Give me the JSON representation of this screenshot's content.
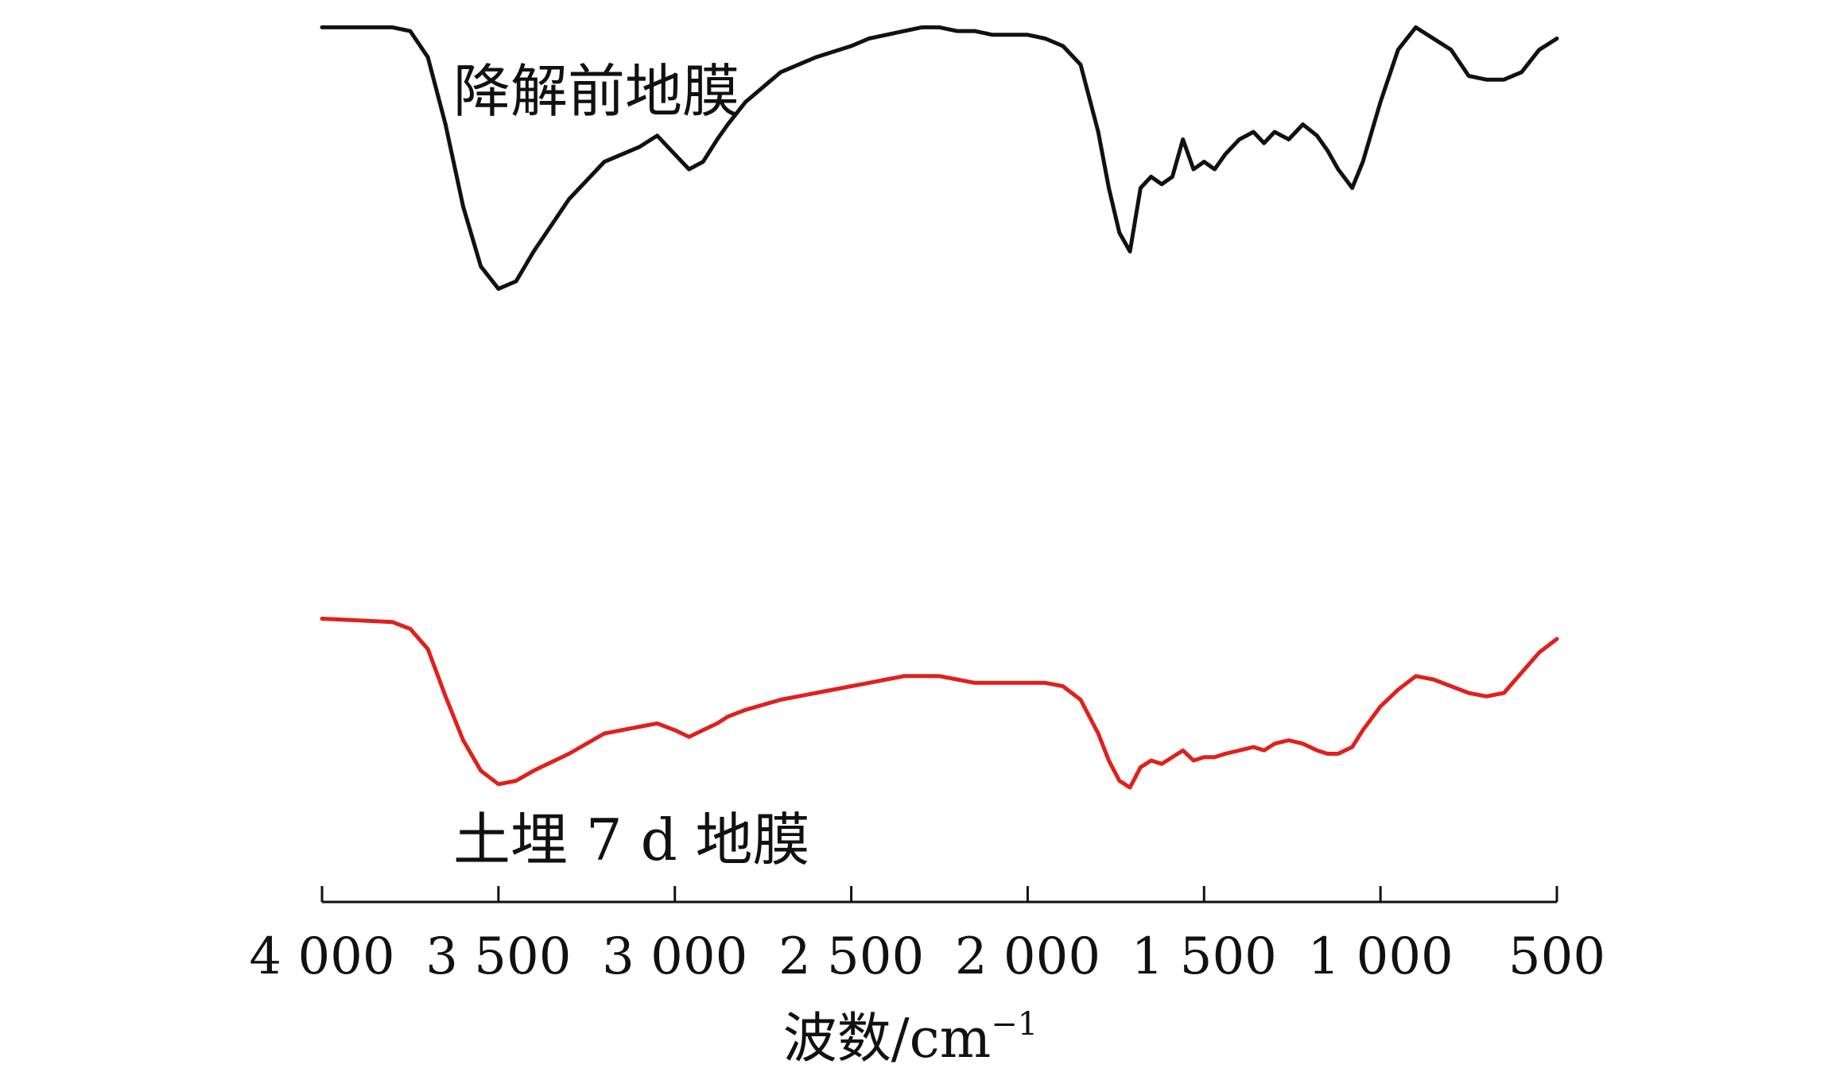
{
  "chart_data": {
    "type": "line",
    "title": "",
    "xlabel": "波数/cm",
    "xlabel_sup": "−1",
    "xlim": [
      4000,
      500
    ],
    "x_reversed": true,
    "x_ticks": [
      4000,
      3500,
      3000,
      2500,
      2000,
      1500,
      1000,
      500
    ],
    "x_tick_labels": [
      "4 000",
      "3 500",
      "3 000",
      "2 500",
      "2 000",
      "1 500",
      "1 000",
      "500"
    ],
    "ylim": [
      0,
      100
    ],
    "y_axis_shown": false,
    "grid": false,
    "legend": "none",
    "series": [
      {
        "name": "降解前地膜",
        "color": "#111111",
        "x": [
          4000,
          3900,
          3800,
          3750,
          3700,
          3650,
          3600,
          3550,
          3500,
          3450,
          3400,
          3300,
          3200,
          3100,
          3050,
          3000,
          2960,
          2920,
          2880,
          2850,
          2800,
          2700,
          2600,
          2500,
          2450,
          2400,
          2350,
          2300,
          2250,
          2200,
          2150,
          2100,
          2050,
          2000,
          1950,
          1900,
          1850,
          1800,
          1770,
          1740,
          1710,
          1680,
          1650,
          1620,
          1590,
          1560,
          1530,
          1500,
          1470,
          1440,
          1400,
          1360,
          1330,
          1300,
          1260,
          1220,
          1180,
          1150,
          1120,
          1080,
          1050,
          1000,
          950,
          900,
          850,
          800,
          750,
          700,
          650,
          600,
          550,
          500
        ],
        "y": [
          98,
          98,
          98,
          97,
          90,
          72,
          50,
          34,
          28,
          30,
          38,
          52,
          62,
          66,
          69,
          64,
          60,
          62,
          68,
          72,
          78,
          86,
          90,
          93,
          95,
          96,
          97,
          98,
          98,
          97,
          97,
          96,
          96,
          96,
          95,
          93,
          88,
          70,
          55,
          43,
          38,
          55,
          58,
          56,
          58,
          68,
          60,
          62,
          60,
          64,
          68,
          70,
          67,
          70,
          68,
          72,
          69,
          65,
          60,
          55,
          62,
          78,
          92,
          98,
          95,
          92,
          85,
          84,
          84,
          86,
          92,
          95
        ]
      },
      {
        "name": "土埋 7 d 地膜",
        "color": "#e0201c",
        "x": [
          4000,
          3900,
          3800,
          3750,
          3700,
          3650,
          3600,
          3550,
          3500,
          3450,
          3400,
          3300,
          3200,
          3100,
          3050,
          3000,
          2960,
          2920,
          2880,
          2850,
          2800,
          2700,
          2600,
          2500,
          2450,
          2400,
          2350,
          2300,
          2250,
          2200,
          2150,
          2100,
          2050,
          2000,
          1950,
          1900,
          1850,
          1800,
          1770,
          1740,
          1710,
          1680,
          1650,
          1620,
          1590,
          1560,
          1530,
          1500,
          1470,
          1440,
          1400,
          1360,
          1330,
          1300,
          1260,
          1220,
          1180,
          1150,
          1120,
          1080,
          1050,
          1000,
          950,
          900,
          850,
          800,
          750,
          700,
          650,
          600,
          550,
          500
        ],
        "y": [
          58,
          57.5,
          57,
          55,
          49,
          35,
          22,
          13,
          9,
          10,
          13,
          18,
          24,
          26,
          27,
          25,
          23,
          25,
          27,
          29,
          31,
          34,
          36,
          38,
          39,
          40,
          41,
          41,
          41,
          40,
          39,
          39,
          39,
          39,
          39,
          38,
          34,
          24,
          16,
          10,
          8,
          14,
          16,
          15,
          17,
          19,
          16,
          17,
          17,
          18,
          19,
          20,
          19,
          21,
          22,
          21,
          19,
          18,
          18,
          20,
          25,
          32,
          37,
          41,
          40,
          38,
          36,
          35,
          36,
          42,
          48,
          52
        ]
      }
    ]
  }
}
